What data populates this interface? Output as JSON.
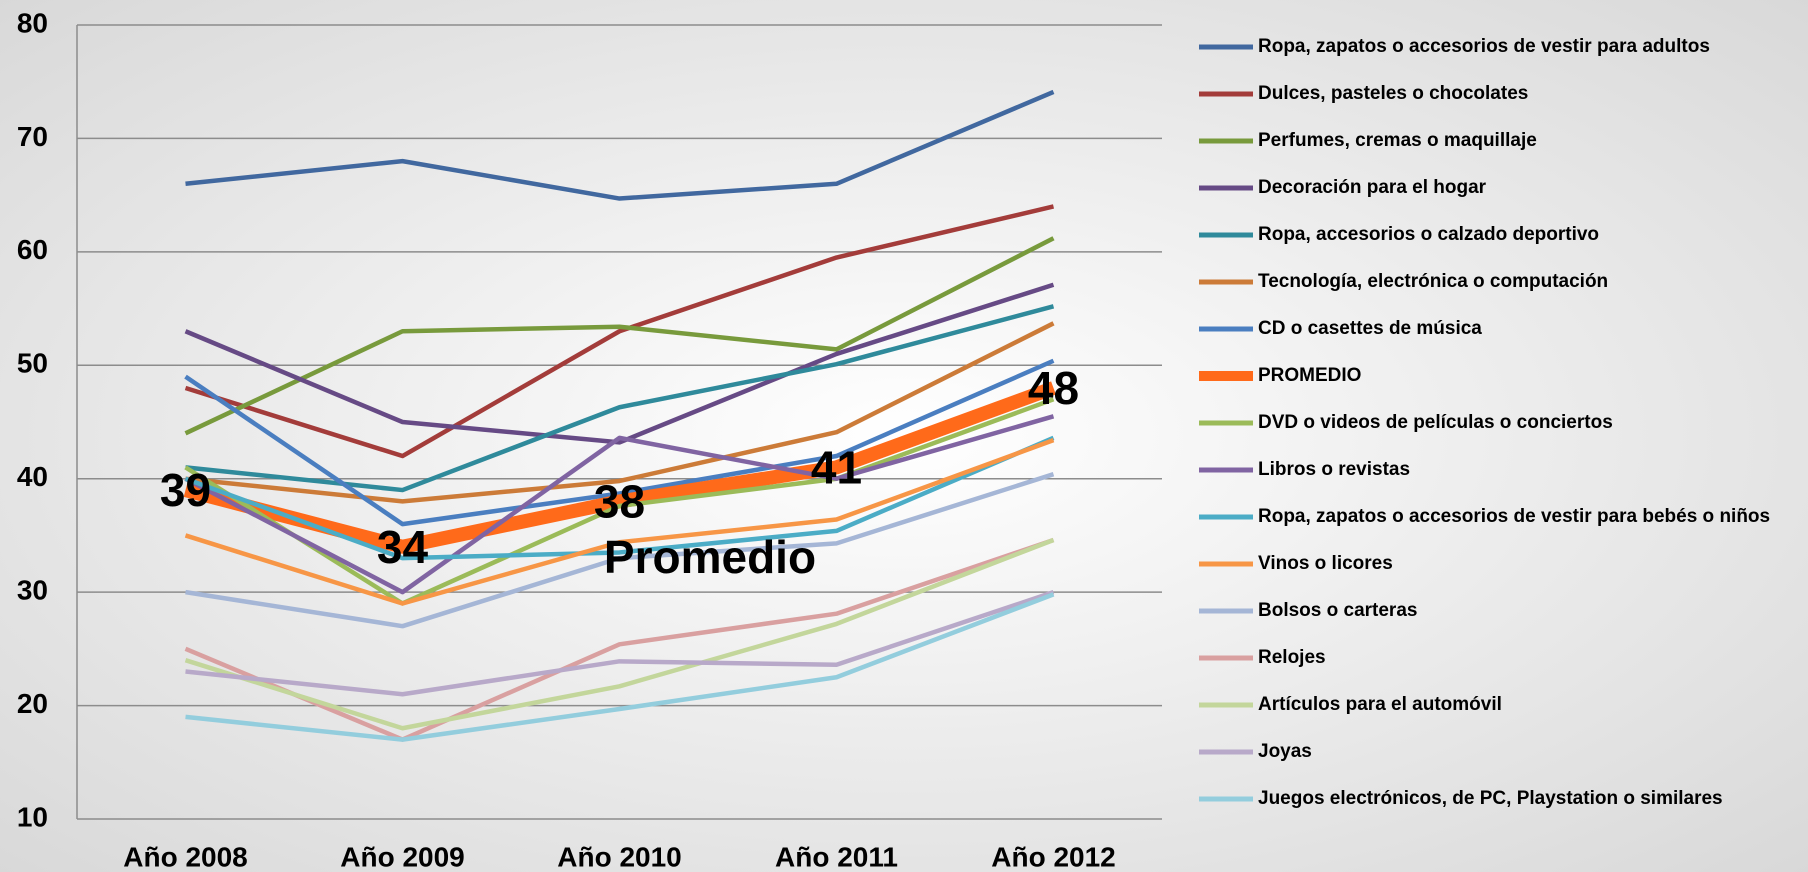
{
  "chart_data": {
    "type": "line",
    "categories": [
      "Año 2008",
      "Año 2009",
      "Año 2010",
      "Año 2011",
      "Año 2012"
    ],
    "ylim": [
      10,
      80
    ],
    "yticks": [
      10,
      20,
      30,
      40,
      50,
      60,
      70,
      80
    ],
    "grid": true,
    "annotation": "Promedio",
    "series": [
      {
        "name": "Ropa, zapatos o accesorios de vestir para adultos",
        "color": "#41689f",
        "values": [
          66,
          68,
          64.7,
          66,
          74.1
        ]
      },
      {
        "name": "Dulces, pasteles o chocolates",
        "color": "#a33c3a",
        "values": [
          48,
          42,
          53,
          59.5,
          64
        ]
      },
      {
        "name": "Perfumes, cremas o maquillaje",
        "color": "#789a3c",
        "values": [
          44,
          53,
          53.4,
          51.4,
          61.2
        ]
      },
      {
        "name": "Decoración para el hogar",
        "color": "#664a85",
        "values": [
          53,
          45,
          43.2,
          51,
          57.1
        ]
      },
      {
        "name": "Ropa, accesorios o calzado deportivo",
        "color": "#2f8a9b",
        "values": [
          41,
          39,
          46.3,
          50.1,
          55.2
        ]
      },
      {
        "name": "Tecnología, electrónica o computación",
        "color": "#cc7b38",
        "values": [
          40,
          38,
          39.8,
          44.1,
          53.7
        ]
      },
      {
        "name": "CD o casettes de música",
        "color": "#4a7ec0",
        "values": [
          49,
          36,
          38.7,
          42,
          50.4
        ]
      },
      {
        "name": "PROMEDIO",
        "color": "#ff6a1a",
        "values": [
          39,
          34,
          38,
          41,
          48
        ]
      },
      {
        "name": "DVD o videos de películas o conciertos",
        "color": "#9bbb59",
        "values": [
          41,
          29,
          37.6,
          40,
          47
        ]
      },
      {
        "name": "Libros o revistas",
        "color": "#8064a2",
        "values": [
          40,
          30,
          43.6,
          40,
          45.5
        ]
      },
      {
        "name": "Ropa, zapatos o accesorios de vestir para bebés o niños",
        "color": "#4bacc6",
        "values": [
          40,
          33,
          33.5,
          35.4,
          43.6
        ]
      },
      {
        "name": "Vinos o licores",
        "color": "#f79646",
        "values": [
          35,
          29,
          34.4,
          36.4,
          43.4
        ]
      },
      {
        "name": "Bolsos o carteras",
        "color": "#a5b6d6",
        "values": [
          30,
          27,
          33,
          34.3,
          40.4
        ]
      },
      {
        "name": "Relojes",
        "color": "#d9a0a0",
        "values": [
          25,
          17,
          25.4,
          28.1,
          34.6
        ]
      },
      {
        "name": "Artículos para el automóvil",
        "color": "#c3d69b",
        "values": [
          24,
          18,
          21.7,
          27.2,
          34.6
        ]
      },
      {
        "name": "Joyas",
        "color": "#b8a9c9",
        "values": [
          23,
          21,
          23.9,
          23.6,
          30
        ]
      },
      {
        "name": "Juegos electrónicos, de PC, Playstation o similares",
        "color": "#93cddd",
        "values": [
          19,
          17,
          19.7,
          22.5,
          29.8
        ]
      }
    ]
  }
}
